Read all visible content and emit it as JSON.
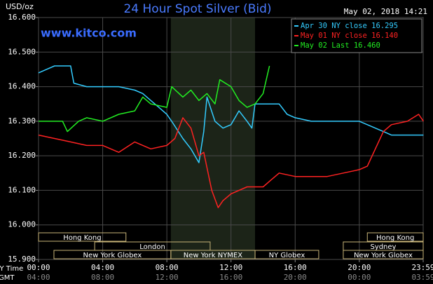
{
  "chart_data": {
    "type": "line",
    "title": "24 Hour Spot Silver (Bid)",
    "unit_label": "USD/oz",
    "timestamp": "May 02, 2018 14:21",
    "watermark": "www.kitco.com",
    "x_row_label": "NY Time",
    "x2_row_label": "GMT",
    "xlim": [
      0,
      23.983
    ],
    "xticks": [
      {
        "value": 0,
        "label": "00:00",
        "gmt": "04:00"
      },
      {
        "value": 4,
        "label": "04:00",
        "gmt": "08:00"
      },
      {
        "value": 8,
        "label": "08:00",
        "gmt": "12:00"
      },
      {
        "value": 12,
        "label": "12:00",
        "gmt": "16:00"
      },
      {
        "value": 16,
        "label": "16:00",
        "gmt": "20:00"
      },
      {
        "value": 20,
        "label": "20:00",
        "gmt": "00:00"
      },
      {
        "value": 23.983,
        "label": "23:59",
        "gmt": "03:59"
      }
    ],
    "ylim": [
      15.9,
      16.6
    ],
    "yticks": [
      {
        "value": 15.9,
        "label": "15.900"
      },
      {
        "value": 16.0,
        "label": "16.000"
      },
      {
        "value": 16.1,
        "label": "16.100"
      },
      {
        "value": 16.2,
        "label": "16.200"
      },
      {
        "value": 16.3,
        "label": "16.300"
      },
      {
        "value": 16.4,
        "label": "16.400"
      },
      {
        "value": 16.5,
        "label": "16.500"
      },
      {
        "value": 16.6,
        "label": "16.600"
      }
    ],
    "grid": true,
    "legend_position": "top-right",
    "series": [
      {
        "name": "Apr 30 NY close 16.295",
        "color": "#33ccff",
        "x": [
          0,
          0.5,
          1,
          1.5,
          2,
          2.2,
          3,
          4,
          5,
          6,
          6.5,
          7,
          7.5,
          8,
          8.3,
          9,
          9.5,
          10,
          10.3,
          10.5,
          11,
          11.5,
          12,
          12.5,
          13,
          13.3,
          13.5,
          14,
          15,
          15.5,
          16,
          17,
          18,
          19,
          20,
          20.5,
          21,
          21.5,
          22,
          23,
          24
        ],
        "values": [
          16.44,
          16.45,
          16.46,
          16.46,
          16.46,
          16.41,
          16.4,
          16.4,
          16.4,
          16.39,
          16.38,
          16.36,
          16.34,
          16.32,
          16.3,
          16.25,
          16.22,
          16.18,
          16.27,
          16.37,
          16.3,
          16.28,
          16.29,
          16.33,
          16.3,
          16.28,
          16.35,
          16.35,
          16.35,
          16.32,
          16.31,
          16.3,
          16.3,
          16.3,
          16.3,
          16.29,
          16.28,
          16.27,
          16.26,
          16.26,
          16.26
        ]
      },
      {
        "name": "May 01 NY close 16.140",
        "color": "#ff2222",
        "x": [
          0,
          1,
          2,
          3,
          4,
          5,
          6,
          7,
          8,
          8.5,
          9,
          9.5,
          10,
          10.3,
          10.8,
          11.2,
          11.5,
          12,
          13,
          14,
          14.5,
          15,
          16,
          17,
          18,
          19,
          20,
          20.5,
          21,
          21.5,
          22,
          23,
          23.7,
          24
        ],
        "values": [
          16.26,
          16.25,
          16.24,
          16.23,
          16.23,
          16.21,
          16.24,
          16.22,
          16.23,
          16.25,
          16.31,
          16.28,
          16.2,
          16.21,
          16.1,
          16.05,
          16.07,
          16.09,
          16.11,
          16.11,
          16.13,
          16.15,
          16.14,
          16.14,
          16.14,
          16.15,
          16.16,
          16.17,
          16.22,
          16.27,
          16.29,
          16.3,
          16.32,
          16.3
        ]
      },
      {
        "name": "May 02 Last 16.460",
        "color": "#22ee22",
        "x": [
          0,
          1,
          1.5,
          1.8,
          2.5,
          3,
          4,
          5,
          6,
          6.5,
          7,
          8,
          8.3,
          9,
          9.5,
          10,
          10.5,
          11,
          11.3,
          12,
          12.5,
          13,
          13.5,
          14,
          14.3,
          14.4
        ],
        "values": [
          16.3,
          16.3,
          16.3,
          16.27,
          16.3,
          16.31,
          16.3,
          16.32,
          16.33,
          16.37,
          16.35,
          16.34,
          16.4,
          16.37,
          16.39,
          16.36,
          16.38,
          16.35,
          16.42,
          16.4,
          16.36,
          16.34,
          16.35,
          16.38,
          16.44,
          16.46
        ]
      }
    ],
    "session_rows": [
      [
        {
          "label": "Hong Kong",
          "start": 0,
          "end": 5.45
        },
        {
          "label": "Hong Kong",
          "start": 20.5,
          "end": 23.983
        }
      ],
      [
        {
          "label": "London",
          "start": 3.5,
          "end": 10.7
        },
        {
          "label": "Sydney",
          "start": 19,
          "end": 23.983
        }
      ],
      [
        {
          "label": "New York Globex",
          "start": 0.96,
          "end": 8.25
        },
        {
          "label": "New York NYMEX",
          "start": 8.25,
          "end": 13.5,
          "highlight": true
        },
        {
          "label": "NY Globex",
          "start": 13.5,
          "end": 17.47
        },
        {
          "label": "New York Globex",
          "start": 19,
          "end": 23.983
        }
      ]
    ]
  }
}
